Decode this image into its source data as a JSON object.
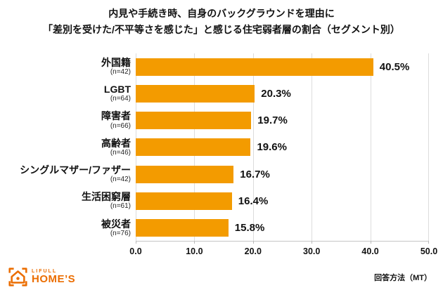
{
  "title": {
    "line1": "内見や手続き時、自身のバックグラウンドを理由に",
    "line2": "「差別を受けた/不平等さを感じた」と感じる住宅弱者層の割合（セグメント別）"
  },
  "chart_data": {
    "type": "bar",
    "orientation": "horizontal",
    "categories": [
      "外国籍",
      "LGBT",
      "障害者",
      "高齢者",
      "シングルマザー/ファザー",
      "生活困窮層",
      "被災者"
    ],
    "sample_sizes": [
      "(n=42)",
      "(n=64)",
      "(n=66)",
      "(n=46)",
      "(n=42)",
      "(n=61)",
      "(n=76)"
    ],
    "values": [
      40.5,
      20.3,
      19.7,
      19.6,
      16.7,
      16.4,
      15.8
    ],
    "value_labels": [
      "40.5%",
      "20.3%",
      "19.7%",
      "19.6%",
      "16.7%",
      "16.4%",
      "15.8%"
    ],
    "x_ticks": [
      "0.0",
      "10.0",
      "20.0",
      "30.0",
      "40.0",
      "50.0"
    ],
    "xlim": [
      0,
      50
    ],
    "grid": true,
    "legend": "none",
    "bar_color": "#f39b00",
    "gridline_color": "#dcdcdc"
  },
  "footer": {
    "note": "回答方法（MT）",
    "logo": {
      "brand_top": "LIFULL",
      "brand_bottom": "HOME’S",
      "color": "#eb6d00",
      "icon": "house-in-brackets-icon"
    }
  }
}
